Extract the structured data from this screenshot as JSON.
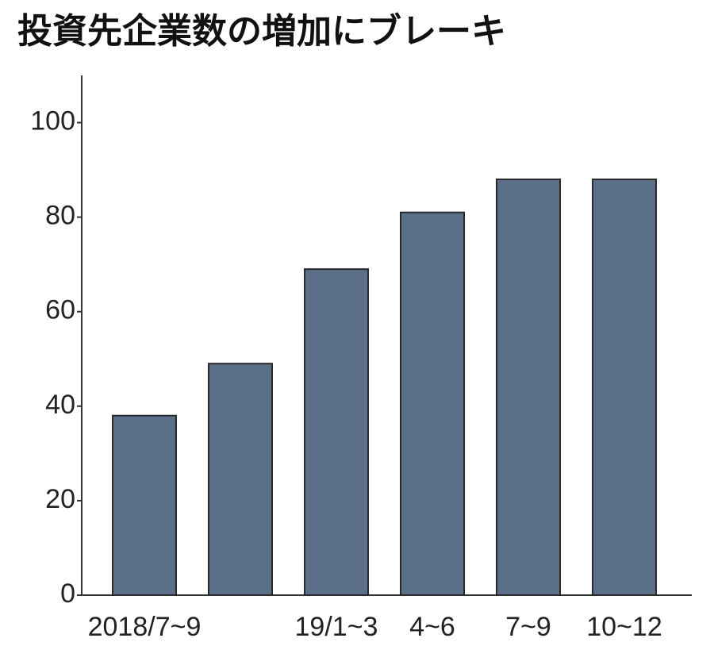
{
  "chart_data": {
    "type": "bar",
    "title": "投資先企業数の増加にブレーキ",
    "categories": [
      "2018/7~9",
      null,
      "19/1~3",
      "4~6",
      "7~9",
      "10~12"
    ],
    "values": [
      38,
      49,
      69,
      81,
      88,
      88
    ],
    "color": "#5b7088",
    "ylim": [
      0,
      110
    ],
    "yticks": [
      0,
      20,
      40,
      60,
      80,
      100
    ],
    "grid": false
  }
}
